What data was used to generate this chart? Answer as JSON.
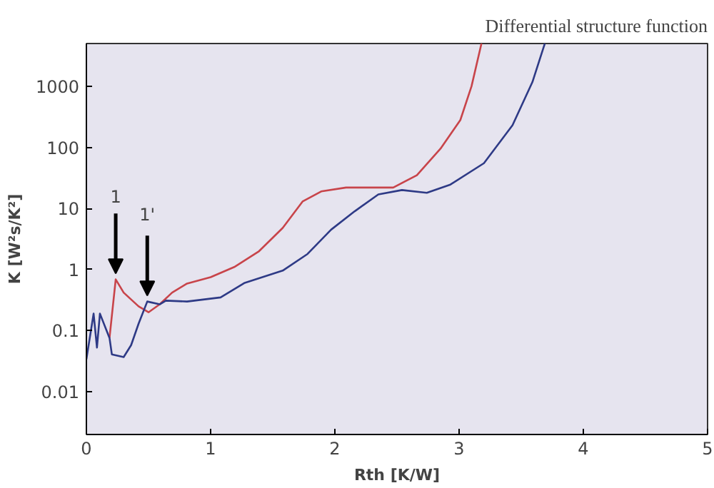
{
  "chart_data": {
    "type": "line",
    "title": "Differential structure function",
    "xlabel": "Rth [K/W]",
    "ylabel": "K [W²s/K²]",
    "log": "y",
    "grid": false,
    "marker": "none",
    "line_style": "solid",
    "xlim": [
      0,
      5
    ],
    "xticks": [
      0,
      1,
      2,
      3,
      4,
      5
    ],
    "ylim": [
      0.002,
      5000
    ],
    "yticks": [
      0.01,
      0.1,
      1,
      10,
      100,
      1000
    ],
    "series": [
      {
        "color": "#c8444a",
        "x": [
          0.186,
          0.236,
          0.3,
          0.42,
          0.5,
          0.59,
          0.69,
          0.81,
          1.0,
          1.19,
          1.39,
          1.58,
          1.74,
          1.89,
          2.09,
          2.47,
          2.66,
          2.85,
          3.01,
          3.1,
          3.18
        ],
        "values": [
          0.076,
          0.69,
          0.42,
          0.25,
          0.2,
          0.27,
          0.42,
          0.59,
          0.75,
          1.1,
          2.0,
          4.8,
          13,
          19,
          22,
          22,
          35,
          95,
          280,
          1000,
          5000
        ]
      },
      {
        "color": "#2e3a86",
        "x": [
          0,
          0.058,
          0.085,
          0.109,
          0.186,
          0.205,
          0.3,
          0.36,
          0.42,
          0.49,
          0.59,
          0.64,
          0.81,
          1.08,
          1.27,
          1.58,
          1.78,
          1.97,
          2.16,
          2.35,
          2.54,
          2.74,
          2.93,
          3.2,
          3.43,
          3.59,
          3.69
        ],
        "values": [
          0.034,
          0.19,
          0.053,
          0.19,
          0.076,
          0.041,
          0.037,
          0.058,
          0.13,
          0.3,
          0.27,
          0.31,
          0.3,
          0.35,
          0.6,
          0.96,
          1.8,
          4.5,
          9,
          17,
          20,
          18,
          24.6,
          55,
          230,
          1170,
          5000
        ]
      }
    ],
    "annotations": [
      {
        "text": "1",
        "x": 0.236,
        "y": 0.69
      },
      {
        "text": "1'",
        "x": 0.49,
        "y": 0.3
      }
    ]
  }
}
